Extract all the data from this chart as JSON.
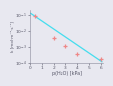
{
  "title": "",
  "xlabel": "p(H₂O) [kPa]",
  "ylabel": "k [mol·m⁻²·s⁻¹]",
  "xlim": [
    0,
    6.2
  ],
  "ylim": [
    0.0001,
    0.2
  ],
  "curve_color": "#44ddee",
  "marker_color": "#ee8888",
  "exp_A": 0.13,
  "exp_B": 1.15,
  "data_points": [
    [
      0.4,
      0.08
    ],
    [
      2.0,
      0.0038
    ],
    [
      3.0,
      0.0011
    ],
    [
      4.0,
      0.00038
    ],
    [
      6.0,
      0.00018
    ]
  ],
  "background_color": "#e8e8f0",
  "plot_bg_color": "#e8e8f0",
  "linewidth": 0.9,
  "marker_size": 3.5,
  "tick_fontsize": 3.2,
  "label_fontsize": 3.5
}
